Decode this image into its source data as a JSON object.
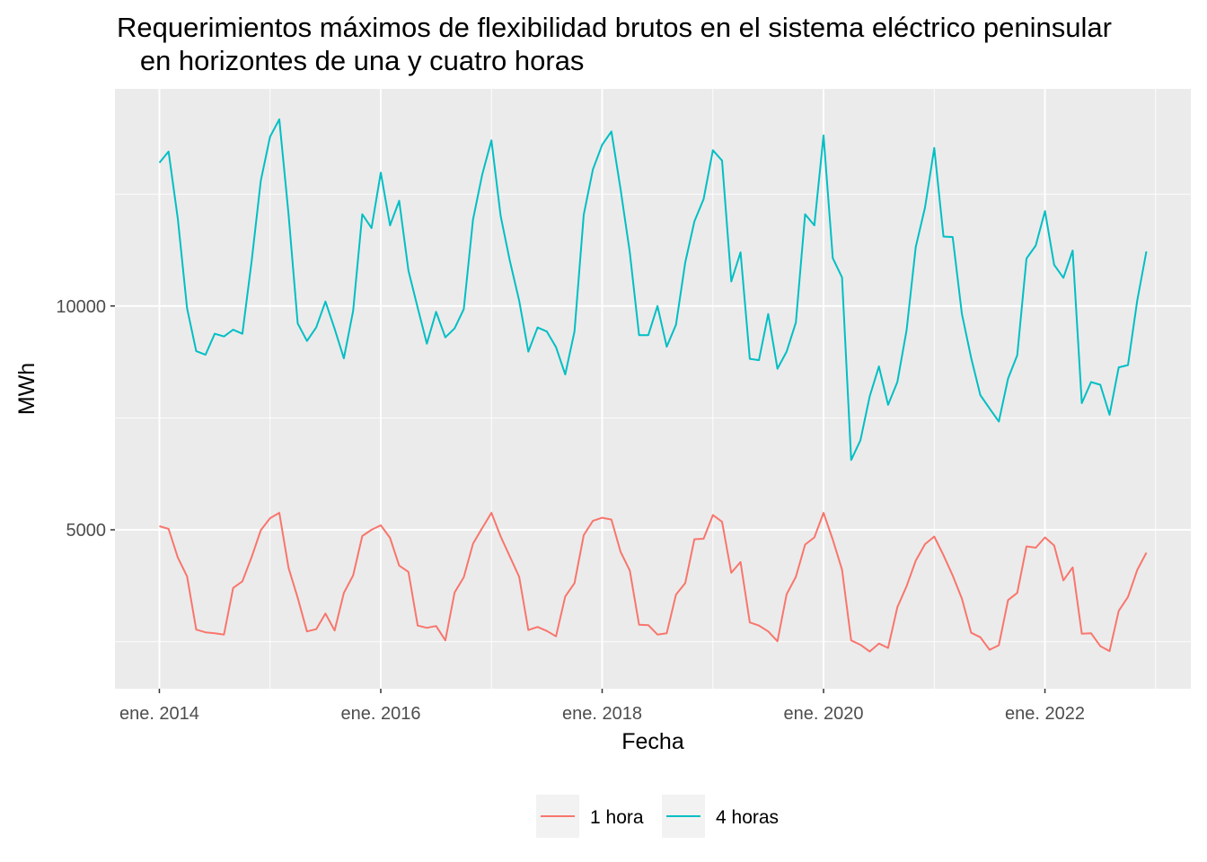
{
  "chart_data": {
    "type": "line",
    "title": "Requerimientos máximos de flexibilidad brutos en el sistema eléctrico peninsular\n   en horizontes de una y cuatro horas",
    "xlabel": "Fecha",
    "ylabel": "MWh",
    "x_start": "2014-01",
    "x_end": "2022-12",
    "x_ticks": [
      {
        "date": "2014-01",
        "label": "ene. 2014"
      },
      {
        "date": "2016-01",
        "label": "ene. 2016"
      },
      {
        "date": "2018-01",
        "label": "ene. 2018"
      },
      {
        "date": "2020-01",
        "label": "ene. 2020"
      },
      {
        "date": "2022-01",
        "label": "ene. 2022"
      }
    ],
    "y_ticks": [
      {
        "value": 5000,
        "label": "5000"
      },
      {
        "value": 10000,
        "label": "10000"
      }
    ],
    "ylim": [
      1450,
      14850
    ],
    "grid": true,
    "legend_position": "bottom",
    "series": [
      {
        "name": "1 hora",
        "color": "#F8766D",
        "values": [
          5080,
          5020,
          4380,
          3960,
          2770,
          2710,
          2690,
          2660,
          3700,
          3850,
          4390,
          4990,
          5260,
          5380,
          4150,
          3480,
          2730,
          2780,
          3130,
          2750,
          3590,
          3980,
          4860,
          5000,
          5100,
          4820,
          4200,
          4060,
          2860,
          2810,
          2850,
          2530,
          3600,
          3940,
          4690,
          5040,
          5380,
          4850,
          4400,
          3950,
          2760,
          2830,
          2740,
          2620,
          3510,
          3810,
          4880,
          5200,
          5270,
          5230,
          4510,
          4090,
          2880,
          2870,
          2660,
          2690,
          3550,
          3810,
          4790,
          4800,
          5330,
          5180,
          4040,
          4280,
          2930,
          2860,
          2730,
          2510,
          3560,
          3950,
          4670,
          4830,
          5380,
          4780,
          4110,
          2530,
          2430,
          2280,
          2460,
          2360,
          3270,
          3740,
          4310,
          4680,
          4850,
          4430,
          3980,
          3460,
          2700,
          2600,
          2320,
          2420,
          3430,
          3590,
          4630,
          4600,
          4830,
          4650,
          3870,
          4160,
          2680,
          2690,
          2400,
          2290,
          3190,
          3500,
          4100,
          4490
        ]
      },
      {
        "name": "4 horas",
        "color": "#00BFC4",
        "values": [
          13200,
          13450,
          11950,
          9950,
          8990,
          8910,
          9380,
          9320,
          9470,
          9380,
          11000,
          12800,
          13780,
          14170,
          12050,
          9610,
          9220,
          9520,
          10100,
          9490,
          8830,
          9890,
          12050,
          11740,
          12980,
          11800,
          12350,
          10790,
          9960,
          9160,
          9870,
          9300,
          9500,
          9930,
          11930,
          12940,
          13700,
          12010,
          11000,
          10120,
          8980,
          9520,
          9430,
          9080,
          8470,
          9430,
          12040,
          13050,
          13600,
          13900,
          12610,
          11200,
          9350,
          9350,
          10000,
          9090,
          9580,
          10970,
          11890,
          12390,
          13480,
          13250,
          10550,
          11200,
          8820,
          8790,
          9820,
          8600,
          8980,
          9630,
          12050,
          11800,
          13810,
          11070,
          10640,
          6560,
          7000,
          7980,
          8650,
          7790,
          8300,
          9460,
          11320,
          12200,
          13530,
          11550,
          11540,
          9820,
          8840,
          8010,
          7710,
          7420,
          8380,
          8900,
          11060,
          11350,
          12120,
          10920,
          10630,
          11240,
          7830,
          8300,
          8240,
          7570,
          8630,
          8680,
          10120,
          11220
        ]
      }
    ]
  }
}
